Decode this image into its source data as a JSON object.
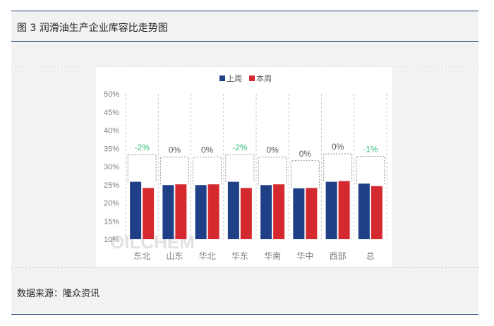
{
  "figure": {
    "title": "图 3 润滑油生产企业库容比走势图",
    "source": "数据来源：隆众资讯"
  },
  "colors": {
    "series1": "#1f3f87",
    "series2": "#d42a2f",
    "negative_label": "#2fbf71",
    "neutral_label": "#595959"
  },
  "chart_data": {
    "type": "bar",
    "categories": [
      "东北",
      "山东",
      "华北",
      "华东",
      "华南",
      "华中",
      "西部",
      "总"
    ],
    "series": [
      {
        "name": "上周",
        "values": [
          25.8,
          24.9,
          24.9,
          25.8,
          24.9,
          24.0,
          25.8,
          25.3
        ]
      },
      {
        "name": "本周",
        "values": [
          24.1,
          25.1,
          25.1,
          24.1,
          25.1,
          24.1,
          26.0,
          24.6
        ]
      }
    ],
    "change_labels": [
      "-2%",
      "0%",
      "0%",
      "-2%",
      "0%",
      "0%",
      "0%",
      "-1%"
    ],
    "change_sign": [
      "neg",
      "zero",
      "zero",
      "neg",
      "zero",
      "zero",
      "zero",
      "neg"
    ],
    "yticks": [
      "10%",
      "15%",
      "20%",
      "25%",
      "30%",
      "35%",
      "40%",
      "45%",
      "50%"
    ],
    "ylim": [
      10,
      50
    ],
    "grid": false,
    "legend_position": "top-center",
    "watermark": "OILCHEM"
  }
}
